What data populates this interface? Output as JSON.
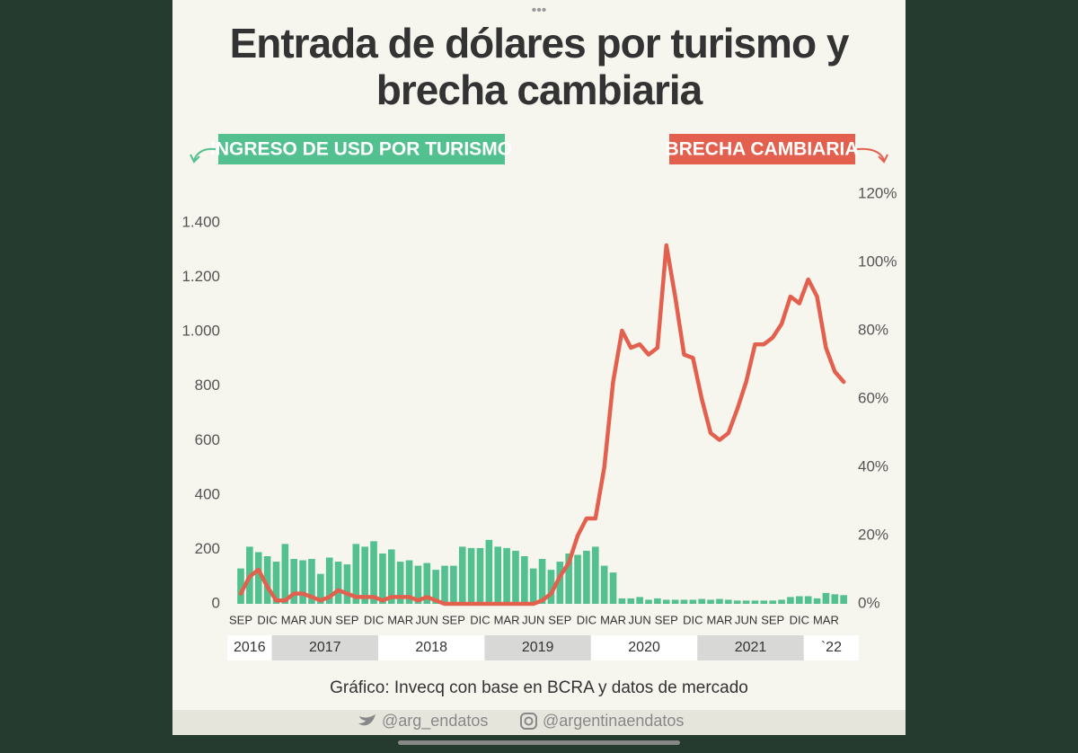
{
  "chart_data": {
    "type": "bar",
    "title": "Entrada de dólares por turismo y brecha cambiaria",
    "categories": [
      "SEP",
      null,
      null,
      "DIC",
      null,
      null,
      "MAR",
      null,
      null,
      "JUN",
      null,
      null,
      "SEP",
      null,
      null,
      "DIC",
      null,
      null,
      "MAR",
      null,
      null,
      "JUN",
      null,
      null,
      "SEP",
      null,
      null,
      "DIC",
      null,
      null,
      "MAR",
      null,
      null,
      "JUN",
      null,
      null,
      "SEP",
      null,
      null,
      "DIC",
      null,
      null,
      "MAR",
      null,
      null,
      "JUN",
      null,
      null,
      "SEP",
      null,
      null,
      "DIC",
      null,
      null,
      "MAR",
      null,
      null,
      "JUN",
      null,
      null,
      "SEP",
      null,
      null,
      "DIC",
      null,
      null,
      "MAR",
      null,
      null
    ],
    "years": [
      "2016",
      "2017",
      "2018",
      "2019",
      "2020",
      "2021",
      "`22"
    ],
    "series": [
      {
        "name": "INGRESO DE USD POR TURISMO",
        "type": "bar",
        "color": "#52c08f",
        "values": [
          130,
          210,
          190,
          175,
          155,
          220,
          165,
          160,
          165,
          110,
          170,
          155,
          145,
          220,
          210,
          230,
          185,
          200,
          155,
          160,
          140,
          150,
          125,
          140,
          140,
          210,
          205,
          205,
          235,
          210,
          205,
          195,
          175,
          130,
          165,
          125,
          155,
          185,
          180,
          195,
          210,
          140,
          115,
          20,
          20,
          25,
          15,
          20,
          15,
          15,
          15,
          15,
          18,
          15,
          18,
          15,
          12,
          12,
          12,
          12,
          12,
          15,
          25,
          28,
          28,
          20,
          40,
          35,
          32
        ]
      },
      {
        "name": "BRECHA CAMBIARIA",
        "type": "line",
        "axis": "y2",
        "color": "#e4604e",
        "values": [
          3,
          8,
          10,
          5,
          1,
          1,
          3,
          3,
          2,
          1,
          2,
          4,
          3,
          2,
          2,
          2,
          1,
          2,
          2,
          2,
          1,
          2,
          1,
          0,
          0,
          0,
          0,
          0,
          0,
          0,
          0,
          0,
          0,
          0,
          1,
          3,
          8,
          12,
          20,
          25,
          25,
          40,
          65,
          80,
          75,
          76,
          73,
          75,
          105,
          90,
          73,
          72,
          60,
          50,
          48,
          50,
          57,
          65,
          76,
          76,
          78,
          82,
          90,
          88,
          95,
          90,
          75,
          68,
          65
        ]
      }
    ],
    "ylim": [
      0,
      1400
    ],
    "yticks": [
      0,
      200,
      400,
      600,
      800,
      {
        "value": 1000,
        "label": "1.000"
      },
      {
        "value": 1200,
        "label": "1.200"
      },
      {
        "value": 1400,
        "label": "1.400"
      }
    ],
    "y2lim": [
      0,
      120
    ],
    "y2ticks": [
      {
        "value": 0,
        "label": "0%"
      },
      {
        "value": 20,
        "label": "20%"
      },
      {
        "value": 40,
        "label": "40%"
      },
      {
        "value": 60,
        "label": "60%"
      },
      {
        "value": 80,
        "label": "80%"
      },
      {
        "value": 100,
        "label": "100%"
      },
      {
        "value": 120,
        "label": "120%"
      }
    ],
    "source": "Gráfico: Invecq con base en BCRA y datos de mercado"
  },
  "footer": {
    "twitter": "@arg_endatos",
    "instagram": "@argentinaendatos"
  }
}
